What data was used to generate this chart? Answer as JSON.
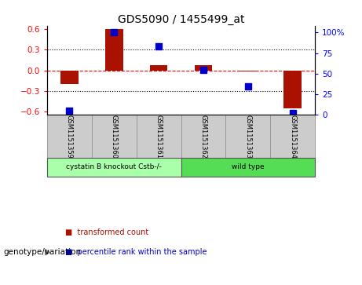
{
  "title": "GDS5090 / 1455499_at",
  "samples": [
    "GSM1151359",
    "GSM1151360",
    "GSM1151361",
    "GSM1151362",
    "GSM1151363",
    "GSM1151364"
  ],
  "transformed_count": [
    -0.2,
    0.6,
    0.08,
    0.07,
    -0.02,
    -0.55
  ],
  "percentile_rank": [
    5,
    100,
    83,
    55,
    35,
    2
  ],
  "ylim_left": [
    -0.65,
    0.65
  ],
  "ylim_right": [
    0,
    108.33
  ],
  "yticks_left": [
    -0.6,
    -0.3,
    0.0,
    0.3,
    0.6
  ],
  "yticks_right": [
    0,
    25,
    50,
    75,
    100
  ],
  "ytick_labels_right": [
    "0",
    "25",
    "50",
    "75",
    "100%"
  ],
  "bar_color": "#aa1100",
  "dot_color": "#0000cc",
  "bar_width": 0.4,
  "dot_size": 35,
  "legend_entries": [
    "transformed count",
    "percentile rank within the sample"
  ],
  "legend_colors": [
    "#aa1100",
    "#0000cc"
  ],
  "genotype_label": "genotype/variation",
  "group_labels": [
    "cystatin B knockout Cstb-/-",
    "wild type"
  ],
  "group_sample_ranges": [
    [
      0,
      2
    ],
    [
      3,
      5
    ]
  ],
  "group_colors": [
    "#aaffaa",
    "#55dd55"
  ],
  "sample_box_color": "#cccccc",
  "sample_box_edge": "#999999"
}
